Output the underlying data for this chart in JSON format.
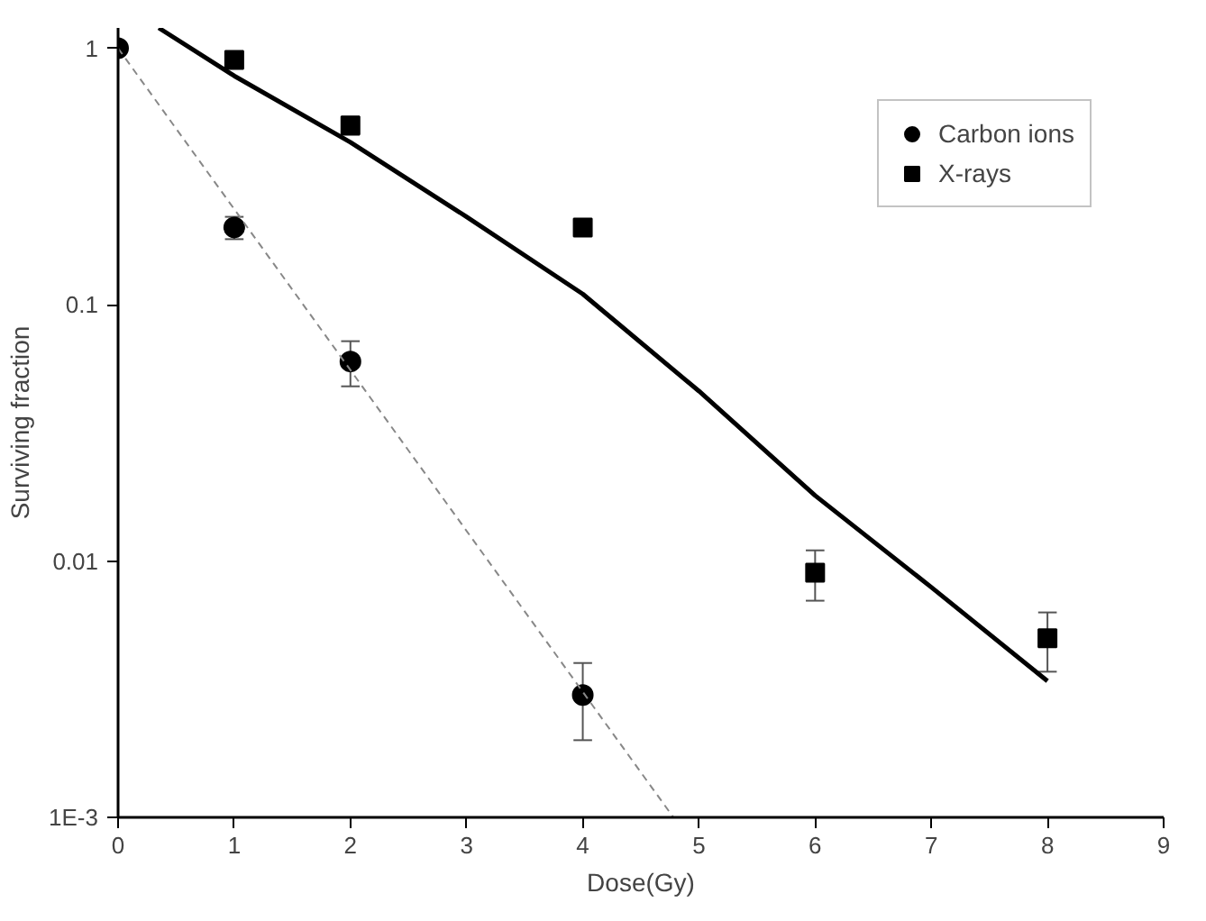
{
  "chart_data": {
    "type": "scatter",
    "xlabel": "Dose(Gy)",
    "ylabel": "Surviving fraction",
    "log": "y",
    "xlim": [
      0,
      9
    ],
    "ylim": [
      0.001,
      1.2
    ],
    "xticks": [
      0,
      1,
      2,
      3,
      4,
      5,
      6,
      7,
      8,
      9
    ],
    "yticks": [
      {
        "value": 0.001,
        "label": "1E-3"
      },
      0.01,
      0.1,
      1
    ],
    "grid": false,
    "legend": "top right",
    "series": [
      {
        "name": "Carbon ions",
        "marker": "circle",
        "color": "#000000",
        "x": [
          0,
          1,
          2,
          4
        ],
        "values": [
          1,
          0.2,
          0.06,
          0.003
        ],
        "errors": [
          null,
          [
            0.18,
            0.22
          ],
          [
            0.048,
            0.072
          ],
          [
            0.002,
            0.004
          ]
        ]
      },
      {
        "name": "X-rays",
        "marker": "square",
        "color": "#000000",
        "x": [
          1,
          2,
          4,
          6,
          8
        ],
        "values": [
          0.9,
          0.5,
          0.2,
          0.009,
          0.005
        ],
        "errors": [
          null,
          [
            0.46,
            0.54
          ],
          null,
          [
            0.007,
            0.011
          ],
          [
            0.0037,
            0.0063
          ]
        ]
      },
      {
        "type": "line",
        "marker": "none",
        "line_style": "dashed",
        "color": "#888888",
        "x": [
          0,
          4.78
        ],
        "values": [
          1,
          0.001
        ]
      },
      {
        "type": "line",
        "marker": "none",
        "line_style": "solid",
        "color": "#000000",
        "x": [
          0.35,
          1,
          2,
          3,
          4,
          5,
          6,
          7,
          8
        ],
        "values": [
          1.2,
          0.78,
          0.43,
          0.22,
          0.11,
          0.046,
          0.018,
          0.0079,
          0.0034
        ]
      }
    ]
  }
}
